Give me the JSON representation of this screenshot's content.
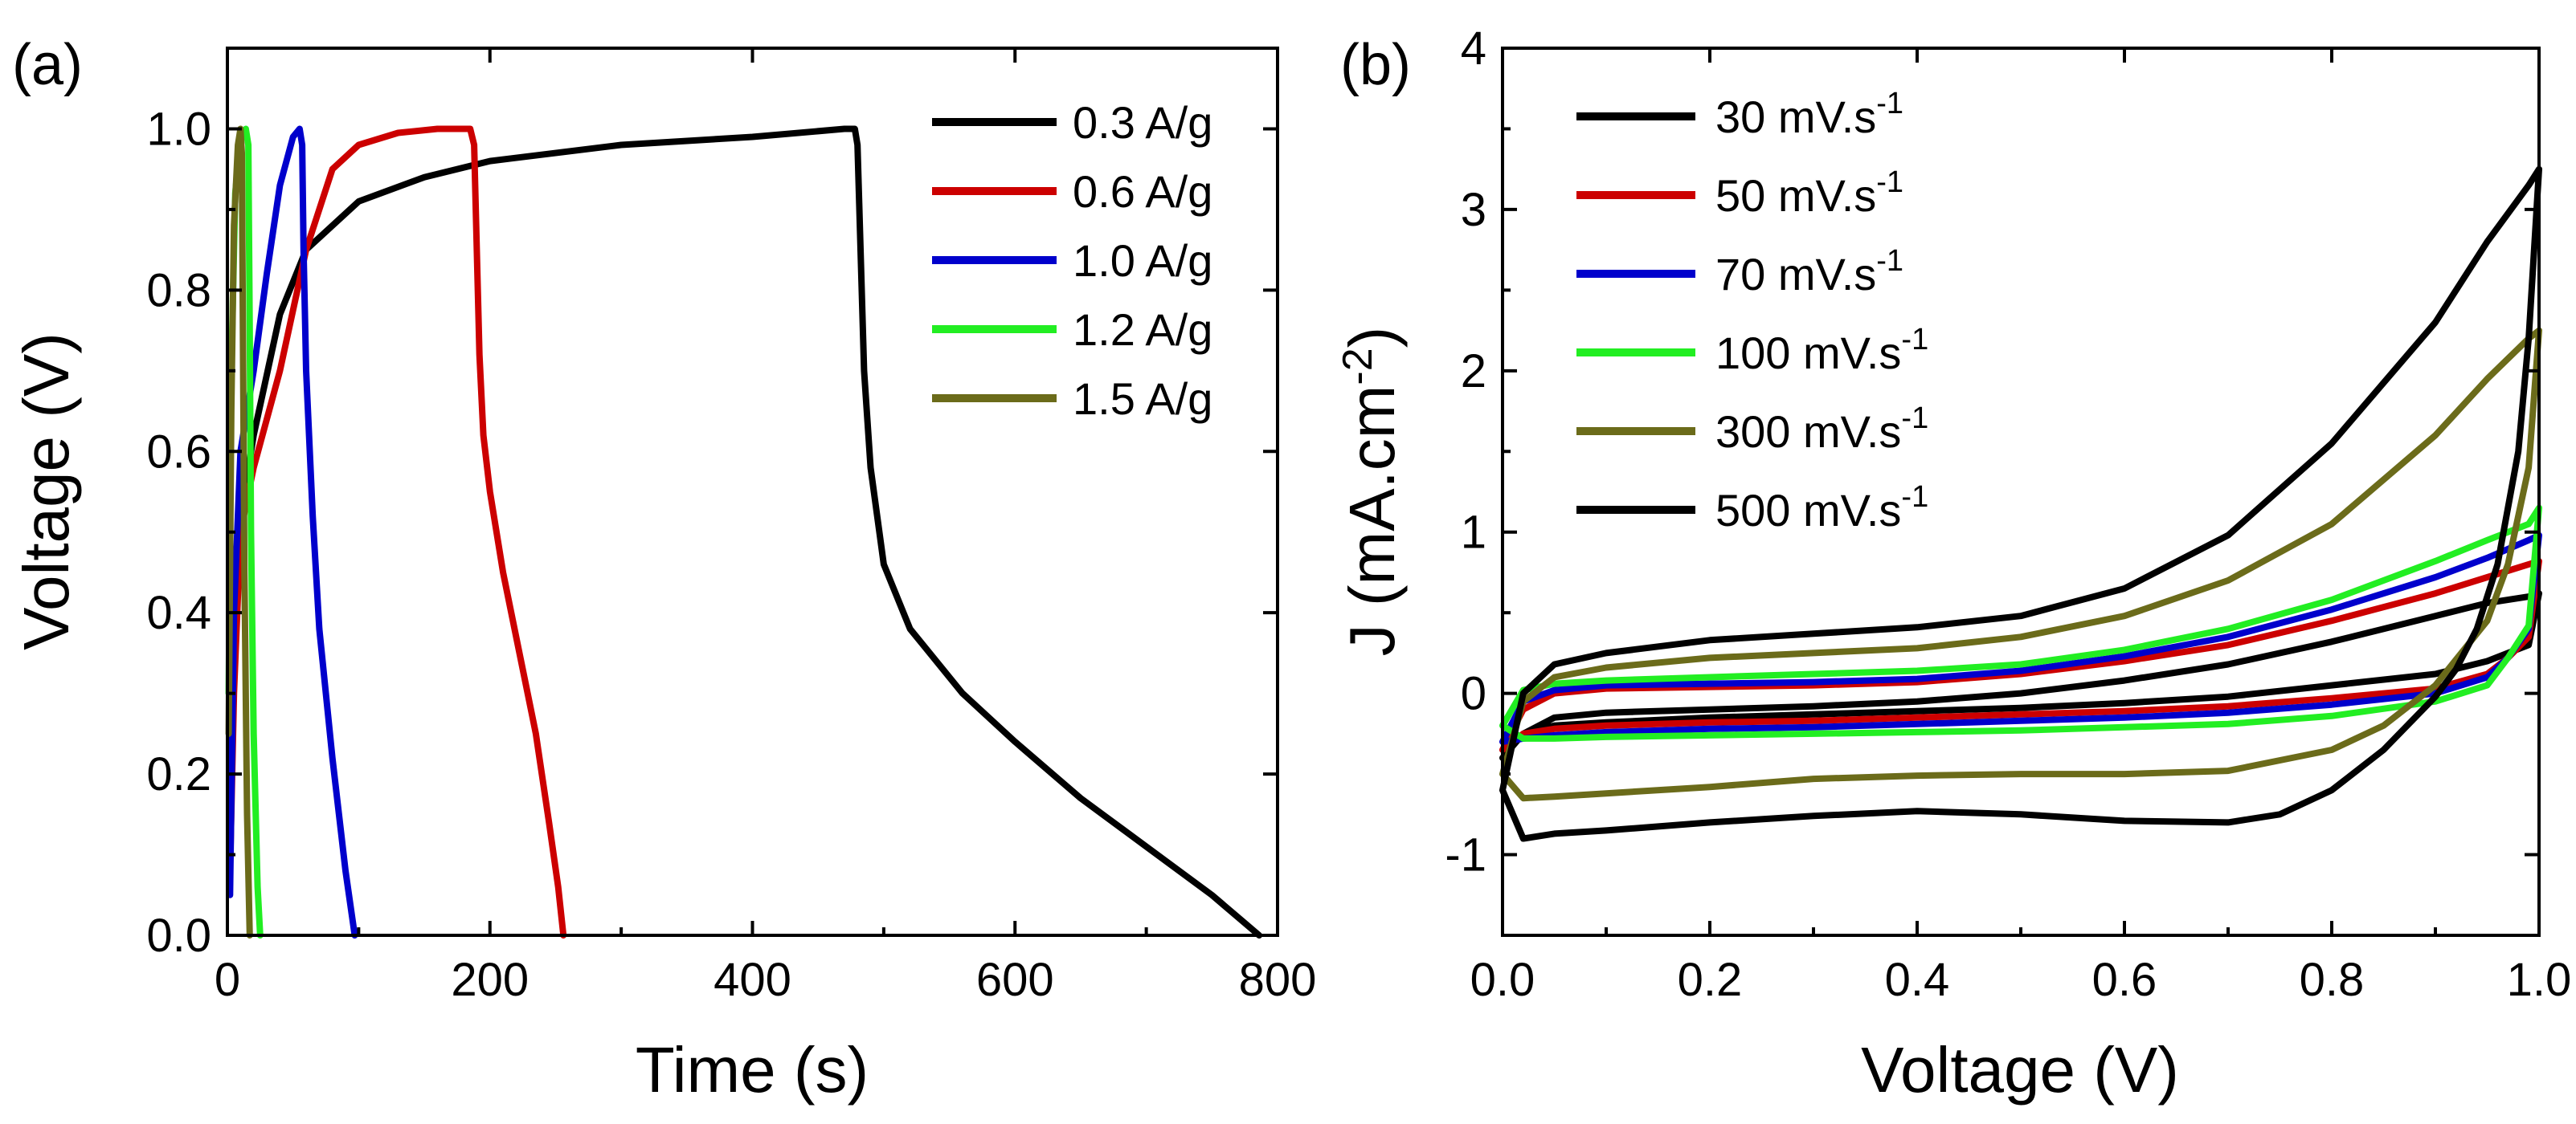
{
  "chart_data": [
    {
      "panel": "(a)",
      "type": "line",
      "xlabel": "Time (s)",
      "ylabel": "Voltage (V)",
      "xlim": [
        0,
        800
      ],
      "ylim": [
        0,
        1.1
      ],
      "xticks": [
        0,
        200,
        400,
        600,
        800
      ],
      "yticks": [
        0.0,
        0.2,
        0.4,
        0.6,
        0.8,
        1.0
      ],
      "xtick_labels": [
        "0",
        "200",
        "400",
        "600",
        "800"
      ],
      "ytick_labels": [
        "0.0",
        "0.2",
        "0.4",
        "0.6",
        "0.8",
        "1.0"
      ],
      "legend_position": "top-right",
      "series": [
        {
          "name": "0.3 A/g",
          "color": "#000000",
          "x": [
            2,
            5,
            10,
            20,
            40,
            60,
            100,
            150,
            200,
            300,
            400,
            470,
            478,
            480,
            485,
            490,
            500,
            520,
            560,
            600,
            650,
            700,
            750,
            786
          ],
          "y": [
            0.08,
            0.45,
            0.52,
            0.62,
            0.77,
            0.85,
            0.91,
            0.94,
            0.96,
            0.98,
            0.99,
            1.0,
            1.0,
            0.98,
            0.7,
            0.58,
            0.46,
            0.38,
            0.3,
            0.24,
            0.17,
            0.11,
            0.05,
            0.0
          ]
        },
        {
          "name": "0.6 A/g",
          "color": "#cc0000",
          "x": [
            2,
            5,
            10,
            20,
            40,
            60,
            80,
            100,
            130,
            160,
            185,
            188,
            190,
            192,
            195,
            200,
            210,
            220,
            235,
            245,
            252,
            256
          ],
          "y": [
            0.08,
            0.3,
            0.5,
            0.58,
            0.7,
            0.85,
            0.95,
            0.98,
            0.995,
            1.0,
            1.0,
            0.98,
            0.85,
            0.72,
            0.62,
            0.55,
            0.45,
            0.37,
            0.25,
            0.14,
            0.06,
            0.0
          ]
        },
        {
          "name": "1.0 A/g",
          "color": "#0000cc",
          "x": [
            2,
            5,
            10,
            20,
            30,
            40,
            50,
            55,
            57,
            58,
            60,
            65,
            70,
            80,
            90,
            97
          ],
          "y": [
            0.05,
            0.4,
            0.6,
            0.7,
            0.82,
            0.93,
            0.99,
            1.0,
            0.98,
            0.85,
            0.7,
            0.52,
            0.38,
            0.22,
            0.08,
            0.0
          ]
        },
        {
          "name": "1.2 A/g",
          "color": "#22ee22",
          "x": [
            1,
            3,
            6,
            10,
            14,
            16,
            17,
            18,
            20,
            23,
            25
          ],
          "y": [
            0.3,
            0.7,
            0.92,
            0.99,
            1.0,
            0.98,
            0.75,
            0.5,
            0.25,
            0.06,
            0.0
          ]
        },
        {
          "name": "1.5 A/g",
          "color": "#6b6b1a",
          "x": [
            1,
            3,
            5,
            8,
            10,
            11,
            12,
            13,
            15,
            17
          ],
          "y": [
            0.25,
            0.65,
            0.88,
            0.98,
            1.0,
            0.97,
            0.7,
            0.45,
            0.15,
            0.0
          ]
        }
      ]
    },
    {
      "panel": "(b)",
      "type": "line",
      "xlabel": "Voltage (V)",
      "ylabel": "J (mA.cm",
      "ylabel_sup": "-2",
      "ylabel_end": ")",
      "xlim": [
        0,
        1.0
      ],
      "ylim": [
        -1.5,
        4
      ],
      "xticks": [
        0.0,
        0.2,
        0.4,
        0.6,
        0.8,
        1.0
      ],
      "yticks": [
        -1,
        0,
        1,
        2,
        3,
        4
      ],
      "xtick_labels": [
        "0.0",
        "0.2",
        "0.4",
        "0.6",
        "0.8",
        "1.0"
      ],
      "ytick_labels": [
        "-1",
        "0",
        "1",
        "2",
        "3",
        "4"
      ],
      "legend_position": "top-left",
      "series": [
        {
          "name": "30 mV.s",
          "sup": "-1",
          "color": "#000000",
          "x": [
            0,
            0.02,
            0.05,
            0.1,
            0.2,
            0.3,
            0.4,
            0.5,
            0.6,
            0.7,
            0.8,
            0.9,
            0.95,
            0.99,
            1.0,
            0.99,
            0.97,
            0.95,
            0.9,
            0.8,
            0.7,
            0.6,
            0.5,
            0.4,
            0.3,
            0.2,
            0.1,
            0.05,
            0.02,
            0
          ],
          "y": [
            -0.4,
            -0.25,
            -0.15,
            -0.12,
            -0.1,
            -0.08,
            -0.05,
            0.0,
            0.08,
            0.18,
            0.32,
            0.48,
            0.56,
            0.6,
            0.62,
            0.3,
            0.25,
            0.2,
            0.12,
            0.05,
            -0.02,
            -0.06,
            -0.09,
            -0.11,
            -0.13,
            -0.15,
            -0.18,
            -0.2,
            -0.25,
            -0.4
          ]
        },
        {
          "name": "50 mV.s",
          "sup": "-1",
          "color": "#cc0000",
          "x": [
            0,
            0.02,
            0.05,
            0.1,
            0.2,
            0.3,
            0.4,
            0.5,
            0.6,
            0.7,
            0.8,
            0.9,
            0.95,
            0.99,
            1.0,
            0.99,
            0.97,
            0.95,
            0.9,
            0.8,
            0.7,
            0.6,
            0.5,
            0.4,
            0.3,
            0.2,
            0.1,
            0.05,
            0.02,
            0
          ],
          "y": [
            -0.35,
            -0.1,
            0.0,
            0.03,
            0.04,
            0.05,
            0.07,
            0.12,
            0.2,
            0.3,
            0.45,
            0.62,
            0.72,
            0.8,
            0.82,
            0.35,
            0.22,
            0.12,
            0.03,
            -0.03,
            -0.08,
            -0.11,
            -0.13,
            -0.15,
            -0.17,
            -0.18,
            -0.2,
            -0.22,
            -0.25,
            -0.35
          ]
        },
        {
          "name": "70 mV.s",
          "sup": "-1",
          "color": "#0000cc",
          "x": [
            0,
            0.02,
            0.05,
            0.1,
            0.2,
            0.3,
            0.4,
            0.5,
            0.6,
            0.7,
            0.8,
            0.9,
            0.95,
            0.99,
            1.0,
            0.99,
            0.97,
            0.95,
            0.9,
            0.8,
            0.7,
            0.6,
            0.5,
            0.4,
            0.3,
            0.2,
            0.1,
            0.05,
            0.02,
            0
          ],
          "y": [
            -0.3,
            -0.05,
            0.02,
            0.05,
            0.06,
            0.07,
            0.09,
            0.14,
            0.23,
            0.35,
            0.52,
            0.72,
            0.84,
            0.95,
            0.98,
            0.4,
            0.22,
            0.1,
            0.0,
            -0.07,
            -0.12,
            -0.15,
            -0.17,
            -0.19,
            -0.21,
            -0.22,
            -0.24,
            -0.26,
            -0.28,
            -0.3
          ]
        },
        {
          "name": "100 mV.s",
          "sup": "-1",
          "color": "#22ee22",
          "x": [
            0,
            0.02,
            0.05,
            0.1,
            0.2,
            0.3,
            0.4,
            0.5,
            0.6,
            0.7,
            0.8,
            0.9,
            0.95,
            0.99,
            1.0,
            0.99,
            0.97,
            0.95,
            0.9,
            0.8,
            0.7,
            0.6,
            0.5,
            0.4,
            0.3,
            0.2,
            0.1,
            0.05,
            0.02,
            0
          ],
          "y": [
            -0.2,
            0.02,
            0.06,
            0.08,
            0.1,
            0.12,
            0.14,
            0.18,
            0.27,
            0.4,
            0.58,
            0.82,
            0.95,
            1.05,
            1.15,
            0.42,
            0.22,
            0.05,
            -0.05,
            -0.14,
            -0.19,
            -0.21,
            -0.23,
            -0.24,
            -0.25,
            -0.26,
            -0.27,
            -0.28,
            -0.28,
            -0.2
          ]
        },
        {
          "name": "300 mV.s",
          "sup": "-1",
          "color": "#6b6b1a",
          "x": [
            0,
            0.02,
            0.05,
            0.1,
            0.2,
            0.3,
            0.4,
            0.5,
            0.6,
            0.7,
            0.8,
            0.9,
            0.95,
            0.99,
            1.0,
            0.99,
            0.97,
            0.95,
            0.9,
            0.85,
            0.8,
            0.7,
            0.6,
            0.5,
            0.4,
            0.3,
            0.2,
            0.1,
            0.05,
            0.02,
            0
          ],
          "y": [
            -0.5,
            -0.05,
            0.1,
            0.16,
            0.22,
            0.25,
            0.28,
            0.35,
            0.48,
            0.7,
            1.05,
            1.6,
            1.95,
            2.2,
            2.25,
            1.4,
            0.8,
            0.45,
            0.05,
            -0.2,
            -0.35,
            -0.48,
            -0.5,
            -0.5,
            -0.51,
            -0.53,
            -0.58,
            -0.62,
            -0.64,
            -0.65,
            -0.5
          ]
        },
        {
          "name": "500 mV.s",
          "sup": "-1",
          "color": "#000000",
          "x": [
            0,
            0.02,
            0.05,
            0.1,
            0.2,
            0.3,
            0.4,
            0.5,
            0.6,
            0.7,
            0.8,
            0.9,
            0.95,
            0.99,
            1.0,
            0.99,
            0.98,
            0.96,
            0.94,
            0.92,
            0.9,
            0.85,
            0.8,
            0.75,
            0.7,
            0.6,
            0.5,
            0.4,
            0.3,
            0.2,
            0.1,
            0.05,
            0.02,
            0
          ],
          "y": [
            -0.6,
            0.0,
            0.18,
            0.25,
            0.33,
            0.37,
            0.41,
            0.48,
            0.65,
            0.98,
            1.55,
            2.3,
            2.8,
            3.15,
            3.25,
            2.2,
            1.5,
            0.8,
            0.4,
            0.15,
            -0.02,
            -0.35,
            -0.6,
            -0.75,
            -0.8,
            -0.79,
            -0.75,
            -0.73,
            -0.76,
            -0.8,
            -0.85,
            -0.87,
            -0.9,
            -0.6
          ]
        }
      ]
    }
  ]
}
